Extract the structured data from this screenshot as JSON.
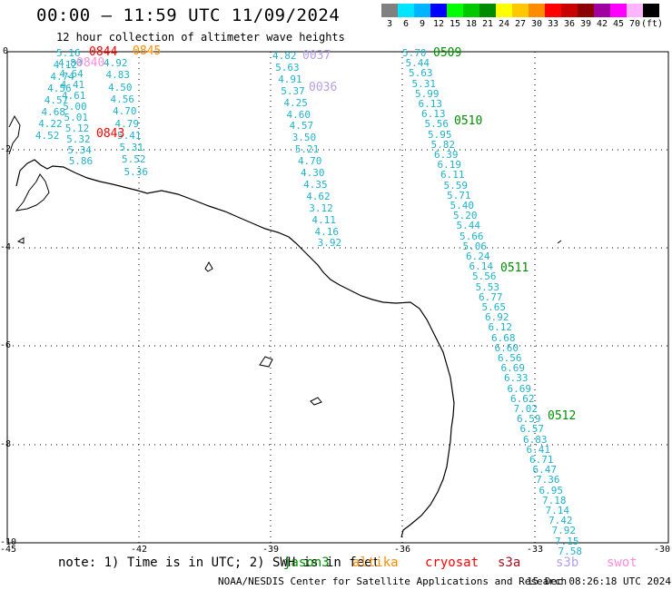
{
  "title": "00:00 – 11:59 UTC 11/09/2024",
  "subtitle": "12 hour collection of altimeter wave heights",
  "legend": {
    "unit": "(ft)",
    "stops": [
      {
        "label": "3",
        "color": "#808080"
      },
      {
        "label": "6",
        "color": "#00e5ff"
      },
      {
        "label": "9",
        "color": "#00b4ff"
      },
      {
        "label": "12",
        "color": "#0000ff"
      },
      {
        "label": "15",
        "color": "#00ff00"
      },
      {
        "label": "18",
        "color": "#00c800"
      },
      {
        "label": "21",
        "color": "#008c00"
      },
      {
        "label": "24",
        "color": "#ffff00"
      },
      {
        "label": "27",
        "color": "#ffc800"
      },
      {
        "label": "30",
        "color": "#ff8c00"
      },
      {
        "label": "33",
        "color": "#ff0000"
      },
      {
        "label": "36",
        "color": "#c80000"
      },
      {
        "label": "39",
        "color": "#8b0000"
      },
      {
        "label": "42",
        "color": "#a000a0"
      },
      {
        "label": "45",
        "color": "#ff00ff"
      },
      {
        "label": "70",
        "color": "#ffb4ff"
      },
      {
        "label": "",
        "color": "#000000"
      }
    ]
  },
  "axes": {
    "x_ticks": [
      "-45",
      "-42",
      "-39",
      "-36",
      "-33",
      "-30"
    ],
    "y_ticks": [
      "0",
      "-2",
      "-4",
      "-6",
      "-8",
      "-10"
    ]
  },
  "note": "note: 1) Time is in UTC; 2) SWH is in feet",
  "satellites": [
    {
      "name": "jason3",
      "color": "#008c00"
    },
    {
      "name": "altika",
      "color": "#ff8c00"
    },
    {
      "name": "cryosat",
      "color": "#ff0000"
    },
    {
      "name": "s3a",
      "color": "#a01020"
    },
    {
      "name": "s3b",
      "color": "#b4a0e6"
    },
    {
      "name": "swot",
      "color": "#ff8cdc"
    }
  ],
  "credit": "NOAA/NESDIS Center for Satellite Applications and Research",
  "timestamp": "15 Dec 08:26:18 UTC 2024",
  "pass_labels": [
    {
      "text": "0844",
      "color": "#ff0000"
    },
    {
      "text": "0845",
      "color": "#ff8c00"
    },
    {
      "text": "0840",
      "color": "#ff8cdc"
    },
    {
      "text": "0843",
      "color": "#ff0000"
    },
    {
      "text": "0037",
      "color": "#b4a0e6"
    },
    {
      "text": "0036",
      "color": "#b4a0e6"
    },
    {
      "text": "0509",
      "color": "#008c00"
    },
    {
      "text": "0510",
      "color": "#008c00"
    },
    {
      "text": "0511",
      "color": "#008c00"
    },
    {
      "text": "0512",
      "color": "#008c00"
    }
  ],
  "tracks": {
    "west_a": [
      "5.16",
      "4.12",
      "4.74",
      "4.56",
      "4.57",
      "4.68",
      "4.22",
      "4.52"
    ],
    "west_b": [
      "4.80",
      "4.64",
      "4.41",
      "4.61",
      "5.00",
      "5.01",
      "5.12",
      "5.32",
      "5.34",
      "5.86"
    ],
    "west_c": [
      "4.92",
      "4.83",
      "4.50",
      "4.56",
      "4.70",
      "4.79",
      "5.41",
      "5.31",
      "5.52",
      "5.36"
    ],
    "mid": [
      "4.82",
      "5.63",
      "4.91",
      "5.37",
      "4.25",
      "4.60",
      "4.57",
      "3.50",
      "5.21",
      "4.70",
      "4.30",
      "4.35",
      "4.62",
      "3.12",
      "4.11",
      "4.16",
      "3.92"
    ],
    "east": [
      "5.70",
      "5.44",
      "5.63",
      "5.31",
      "5.99",
      "6.13",
      "6.13",
      "5.56",
      "5.95",
      "5.82",
      "6.39",
      "6.19",
      "6.11",
      "5.59",
      "5.71",
      "5.40",
      "5.20",
      "5.44",
      "5.66",
      "5.06",
      "6.24",
      "6.14",
      "5.56",
      "5.53",
      "6.77",
      "5.65",
      "6.92",
      "6.12",
      "6.68",
      "6.60",
      "6.56",
      "6.69",
      "6.33",
      "6.69",
      "6.62",
      "7.02",
      "6.59",
      "6.57",
      "6.83",
      "6.41",
      "6.71",
      "6.47",
      "7.36",
      "6.95",
      "7.18",
      "7.14",
      "7.42",
      "7.92",
      "7.15",
      "7.58"
    ]
  }
}
